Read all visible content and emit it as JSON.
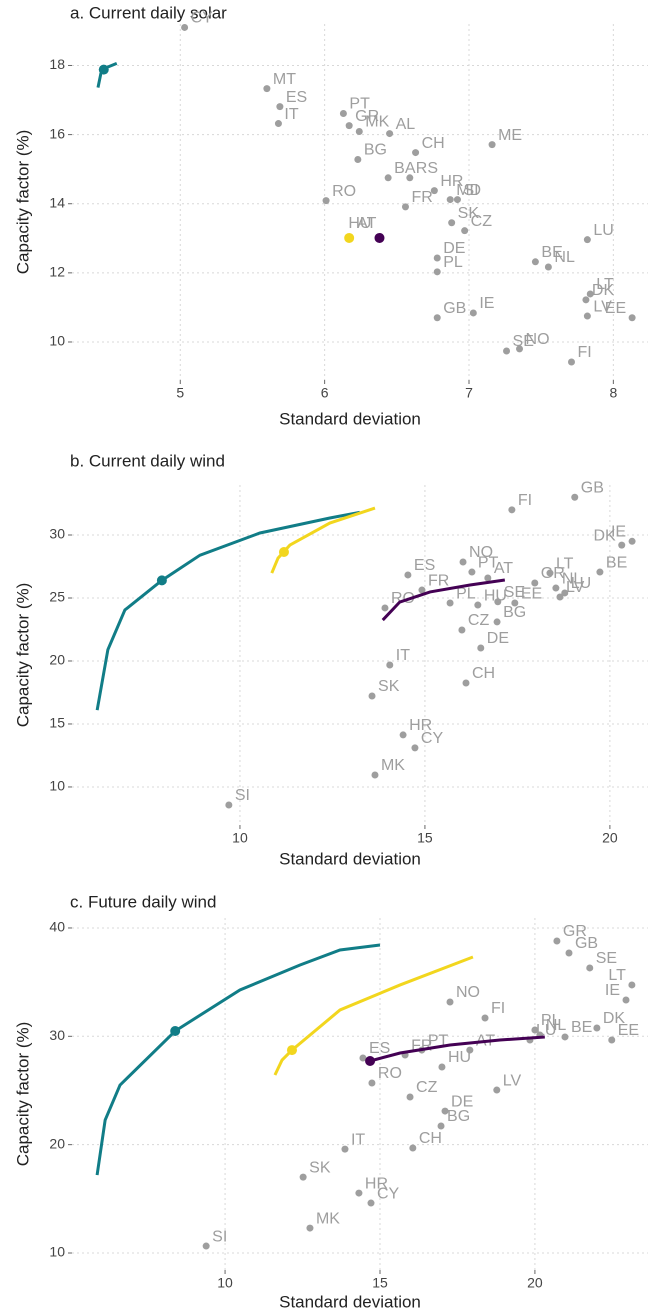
{
  "chart_data": [
    {
      "type": "scatter",
      "title": "a. Current daily solar",
      "xlabel": "Standard deviation",
      "ylabel": "Capacity factor (%)",
      "xlim": [
        4.25,
        8.24
      ],
      "ylim": [
        8.9,
        19.2
      ],
      "xticks": [
        5,
        6,
        7,
        8
      ],
      "yticks": [
        10,
        12,
        14,
        16,
        18
      ],
      "grid": true,
      "point_color": "#9e9e9e",
      "points": {
        "labels": [
          "CY",
          "MT",
          "ES",
          "PT",
          "AL",
          "IT",
          "GR",
          "MK",
          "CH",
          "ME",
          "BG",
          "BA",
          "RS",
          "HR",
          "MD",
          "SI",
          "FR",
          "RO",
          "SK",
          "CZ",
          "DE",
          "PL",
          "LU",
          "BE",
          "NL",
          "LT",
          "DK",
          "EE",
          "LV",
          "IE",
          "GB",
          "NO",
          "SE",
          "FI"
        ],
        "x": [
          5.03,
          5.6,
          5.69,
          6.13,
          6.45,
          5.68,
          6.17,
          6.24,
          6.63,
          7.16,
          6.23,
          6.44,
          6.59,
          6.76,
          6.87,
          6.92,
          6.56,
          6.01,
          6.88,
          6.97,
          6.78,
          6.78,
          7.82,
          7.46,
          7.55,
          7.84,
          7.81,
          8.13,
          7.82,
          7.03,
          6.78,
          7.35,
          7.26,
          7.71
        ],
        "y": [
          19.1,
          17.33,
          16.81,
          16.61,
          16.03,
          16.32,
          16.26,
          16.09,
          15.48,
          15.71,
          15.28,
          14.75,
          14.75,
          14.38,
          14.12,
          14.12,
          13.91,
          14.09,
          13.45,
          13.22,
          12.43,
          12.03,
          12.96,
          12.32,
          12.17,
          11.39,
          11.22,
          10.7,
          10.75,
          10.84,
          10.7,
          9.8,
          9.74,
          9.42
        ]
      },
      "curves": [
        {
          "color": "#117d87",
          "x": [
            4.43,
            4.45,
            4.49,
            4.56
          ],
          "y": [
            17.36,
            17.77,
            17.94,
            18.06
          ]
        }
      ],
      "highlights": [
        {
          "color": "#117d87",
          "x": 4.47,
          "y": 17.88
        },
        {
          "color": "#f2d61e",
          "x": 6.17,
          "y": 13.01,
          "label": "AT"
        },
        {
          "color": "#440154",
          "x": 6.38,
          "y": 13.01,
          "label": "HU"
        }
      ]
    },
    {
      "type": "scatter",
      "title": "b. Current daily wind",
      "xlabel": "Standard deviation",
      "ylabel": "Capacity factor (%)",
      "xlim": [
        5.46,
        21.03
      ],
      "ylim": [
        6.98,
        33.97
      ],
      "xticks": [
        10,
        15,
        20
      ],
      "yticks": [
        10,
        15,
        20,
        25,
        30
      ],
      "grid": true,
      "point_color": "#9e9e9e",
      "points": {
        "labels": [
          "GB",
          "FI",
          "DK",
          "IE",
          "BE",
          "NO",
          "PT",
          "AT",
          "GR",
          "LT",
          "NL",
          "LU",
          "LV",
          "SE",
          "ES",
          "FR",
          "RO",
          "PL",
          "HU",
          "EE",
          "BG",
          "CZ",
          "DE",
          "CH",
          "IT",
          "SK",
          "HR",
          "CY",
          "MK",
          "SI"
        ],
        "x": [
          19.05,
          17.35,
          20.32,
          20.6,
          19.73,
          16.03,
          16.27,
          16.7,
          17.97,
          18.38,
          18.54,
          18.78,
          18.65,
          16.97,
          14.54,
          14.92,
          13.92,
          15.68,
          16.43,
          17.43,
          16.95,
          16.0,
          16.51,
          16.11,
          14.05,
          13.57,
          14.41,
          14.73,
          13.65,
          9.7
        ],
        "y": [
          33.0,
          32.0,
          29.2,
          29.5,
          27.06,
          27.86,
          27.06,
          26.59,
          26.19,
          26.98,
          25.79,
          25.4,
          25.08,
          24.7,
          26.83,
          25.63,
          24.21,
          24.6,
          24.44,
          24.6,
          23.1,
          22.46,
          21.03,
          18.25,
          19.68,
          17.22,
          14.13,
          13.1,
          10.95,
          8.57
        ]
      },
      "curves": [
        {
          "color": "#117d87",
          "x": [
            6.14,
            6.43,
            6.89,
            7.89,
            8.92,
            10.54,
            12.43,
            13.24
          ],
          "y": [
            16.1,
            20.9,
            24.05,
            26.4,
            28.4,
            30.16,
            31.35,
            31.8
          ]
        },
        {
          "color": "#f2d61e",
          "x": [
            10.86,
            11.03,
            11.35,
            12.43,
            13.65
          ],
          "y": [
            26.98,
            28.17,
            29.2,
            30.95,
            32.14
          ]
        },
        {
          "color": "#440154",
          "x": [
            13.86,
            14.32,
            15.14,
            16.22,
            17.16
          ],
          "y": [
            23.25,
            24.68,
            25.48,
            26.03,
            26.43
          ]
        }
      ],
      "highlights": [
        {
          "color": "#117d87",
          "x": 7.89,
          "y": 26.4
        },
        {
          "color": "#f2d61e",
          "x": 11.19,
          "y": 28.65
        }
      ]
    },
    {
      "type": "scatter",
      "title": "c. Future daily wind",
      "xlabel": "Standard deviation",
      "ylabel": "Capacity factor (%)",
      "xlim": [
        5.06,
        23.65
      ],
      "ylim": [
        8.43,
        40.92
      ],
      "xticks": [
        10,
        15,
        20
      ],
      "yticks": [
        10,
        20,
        30,
        40
      ],
      "grid": true,
      "point_color": "#9e9e9e",
      "points": {
        "labels": [
          "GR",
          "GB",
          "SE",
          "LT",
          "IE",
          "DK",
          "EE",
          "NO",
          "FI",
          "PL",
          "NL",
          "BE",
          "LU",
          "AT",
          "PT",
          "FR",
          "ES",
          "HU",
          "RO",
          "LV",
          "CZ",
          "DE",
          "BG",
          "CH",
          "IT",
          "SK",
          "HR",
          "CY",
          "MK",
          "SI"
        ],
        "x": [
          20.71,
          21.1,
          21.77,
          23.13,
          22.94,
          22.0,
          22.48,
          17.26,
          18.39,
          20.0,
          20.16,
          20.97,
          19.84,
          17.9,
          16.35,
          15.81,
          14.45,
          17.0,
          14.74,
          18.77,
          15.97,
          17.1,
          16.97,
          16.06,
          13.87,
          12.52,
          14.32,
          14.71,
          12.74,
          9.39
        ],
        "y": [
          38.8,
          37.69,
          36.31,
          34.74,
          33.35,
          30.77,
          29.66,
          33.17,
          31.69,
          30.58,
          30.12,
          29.94,
          29.66,
          28.73,
          28.73,
          28.27,
          28.0,
          27.17,
          25.69,
          25.04,
          24.4,
          23.1,
          21.72,
          19.69,
          19.59,
          17.0,
          15.53,
          14.61,
          12.3,
          10.64
        ]
      },
      "curves": [
        {
          "color": "#117d87",
          "x": [
            5.87,
            6.13,
            6.61,
            8.39,
            10.48,
            12.42,
            13.71,
            15.0
          ],
          "y": [
            17.19,
            22.27,
            25.5,
            30.49,
            34.28,
            36.58,
            37.97,
            38.43
          ]
        },
        {
          "color": "#f2d61e",
          "x": [
            11.61,
            11.84,
            12.16,
            13.71,
            15.65,
            18.0
          ],
          "y": [
            26.43,
            27.81,
            28.73,
            32.43,
            34.74,
            37.32
          ]
        },
        {
          "color": "#440154",
          "x": [
            14.68,
            15.65,
            17.26,
            18.87,
            20.32
          ],
          "y": [
            27.72,
            28.46,
            29.2,
            29.66,
            29.94
          ]
        }
      ],
      "highlights": [
        {
          "color": "#117d87",
          "x": 8.39,
          "y": 30.49
        },
        {
          "color": "#f2d61e",
          "x": 12.16,
          "y": 28.73
        },
        {
          "color": "#440154",
          "x": 14.68,
          "y": 27.72
        }
      ]
    }
  ]
}
